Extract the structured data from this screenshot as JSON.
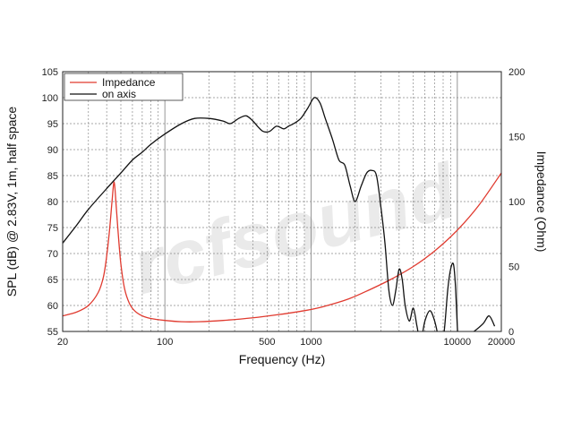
{
  "chart_data": {
    "type": "line",
    "xlabel": "Frequency (Hz)",
    "ylabel": "SPL (dB) @ 2.83V, 1m, half space",
    "y2label": "Impedance (Ohm)",
    "xscale": "log",
    "xlim": [
      20,
      20000
    ],
    "ylim": [
      55,
      105
    ],
    "y2lim": [
      0,
      200
    ],
    "grid": true,
    "legend_position": "top-left",
    "watermark_text": "rcfsound",
    "xticks": [
      "20",
      "100",
      "500",
      "1000",
      "10000",
      "20000"
    ],
    "yticks": [
      "55",
      "60",
      "65",
      "70",
      "75",
      "80",
      "85",
      "90",
      "95",
      "100",
      "105"
    ],
    "y2ticks": [
      "0",
      "50",
      "100",
      "150",
      "200"
    ],
    "series": [
      {
        "name": "Impedance",
        "axis": "right",
        "color": "#e03a2f",
        "x": [
          20,
          25,
          30,
          35,
          38,
          40,
          42,
          43.5,
          45,
          46.5,
          48,
          50,
          53,
          57,
          62,
          70,
          80,
          100,
          130,
          170,
          250,
          400,
          600,
          900,
          1200,
          1800,
          2500,
          3500,
          5000,
          7000,
          10000,
          14000,
          20000
        ],
        "y": [
          12,
          15,
          20,
          30,
          42,
          58,
          80,
          100,
          115,
          96,
          75,
          52,
          33,
          22,
          16,
          12,
          10,
          8.5,
          7.5,
          7.5,
          8.5,
          10.5,
          13,
          16,
          19,
          25,
          32,
          40,
          50,
          62,
          78,
          97,
          122
        ]
      },
      {
        "name": "on axis",
        "axis": "left",
        "color": "#111111",
        "x": [
          20,
          25,
          30,
          40,
          50,
          60,
          70,
          80,
          100,
          130,
          160,
          200,
          250,
          280,
          320,
          360,
          400,
          430,
          470,
          520,
          580,
          650,
          700,
          760,
          850,
          950,
          1050,
          1150,
          1250,
          1400,
          1550,
          1700,
          1850,
          2000,
          2200,
          2400,
          2600,
          2800,
          3000,
          3200,
          3400,
          3600,
          3800,
          4000,
          4200,
          4400,
          4700,
          5000,
          5300,
          5600,
          6000,
          6500,
          7000,
          7400,
          7800,
          8200,
          8600,
          9000,
          9400,
          9700,
          10000,
          10400,
          10800,
          11500,
          13000,
          15000,
          16500,
          18000
        ],
        "y": [
          72,
          75.5,
          78.5,
          82.5,
          85.5,
          88,
          89.5,
          91,
          93,
          95,
          96,
          96,
          95.5,
          95,
          96,
          96.5,
          95.5,
          94.5,
          93.5,
          93.5,
          94.5,
          94,
          94.5,
          95,
          96,
          98,
          100,
          99,
          96,
          92,
          88,
          87,
          83,
          80,
          83,
          85.5,
          86,
          85,
          79,
          72,
          63,
          60,
          63,
          67,
          65,
          60,
          57,
          59.5,
          56,
          53,
          57,
          59,
          57,
          54,
          51,
          56,
          63,
          67,
          68,
          64,
          56,
          48,
          50,
          54,
          55,
          56.5,
          58,
          56
        ]
      }
    ]
  }
}
